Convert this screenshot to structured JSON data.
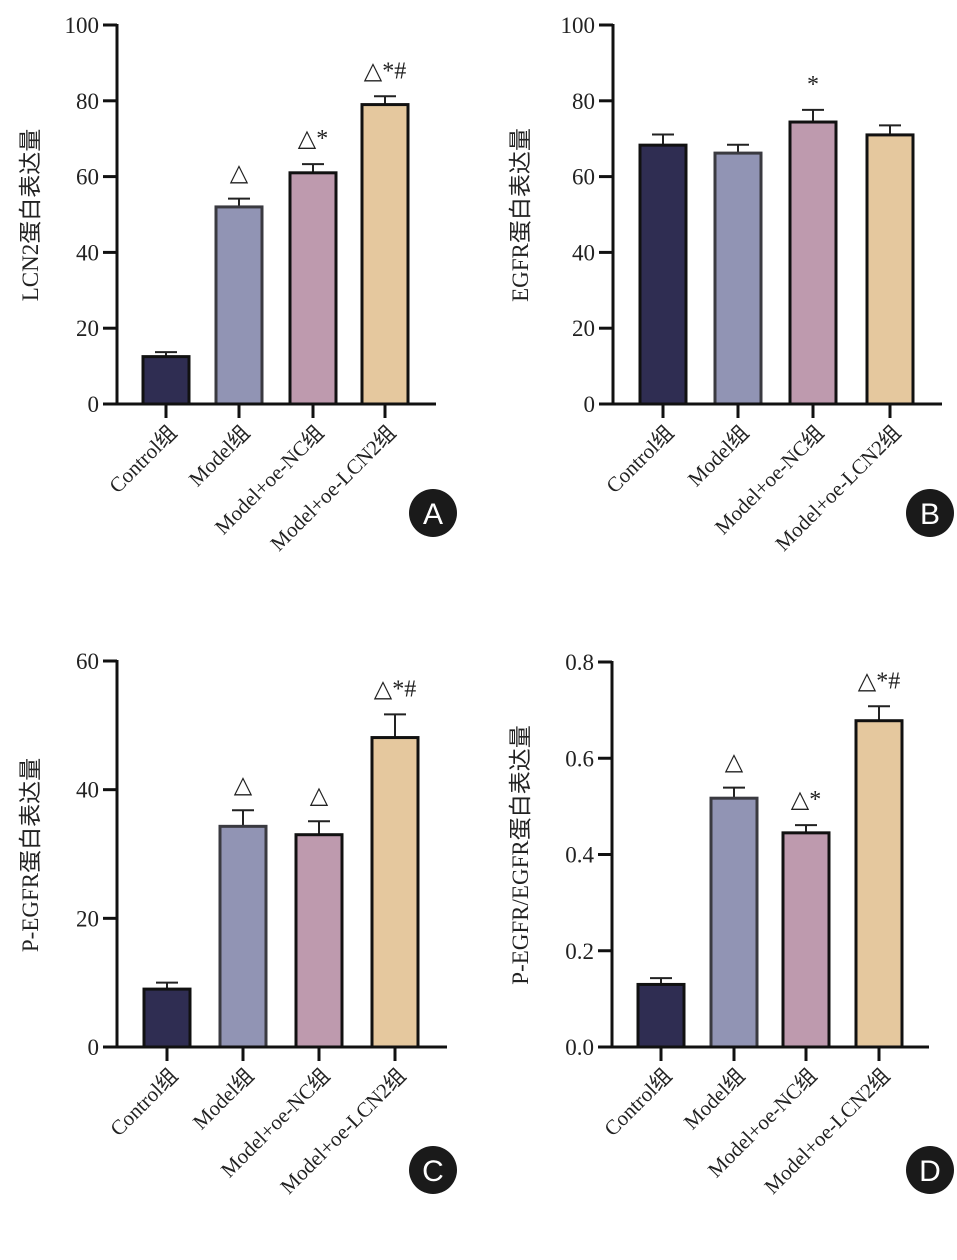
{
  "figure": {
    "categories": [
      "Control组",
      "Model组",
      "Model+oe-NC组",
      "Model+oe-LCN2组"
    ],
    "colors": [
      "#2f2d52",
      "#9194b4",
      "#be9aae",
      "#e5c89e"
    ],
    "edge_colors": [
      "#111111",
      "#3a3a40",
      "#111111",
      "#111111"
    ]
  },
  "chart_data": [
    {
      "panel": "A",
      "type": "bar",
      "title": "",
      "xlabel": "",
      "ylabel": "LCN2蛋白表达量",
      "categories": [
        "Control组",
        "Model组",
        "Model+oe-NC组",
        "Model+oe-LCN2组"
      ],
      "values": [
        12.5,
        52,
        61,
        79
      ],
      "errors": [
        1.2,
        2.2,
        2.3,
        2.2
      ],
      "annotations": [
        "",
        "△",
        "△*",
        "△*#"
      ],
      "ylim": [
        0,
        100
      ],
      "yticks": [
        0,
        20,
        40,
        60,
        80,
        100
      ],
      "ytick_labels": [
        "0",
        "20",
        "40",
        "60",
        "80",
        "100"
      ],
      "grid": false
    },
    {
      "panel": "B",
      "type": "bar",
      "title": "",
      "xlabel": "",
      "ylabel": "EGFR蛋白表达量",
      "categories": [
        "Control组",
        "Model组",
        "Model+oe-NC组",
        "Model+oe-LCN2组"
      ],
      "values": [
        68.3,
        66.2,
        74.4,
        71
      ],
      "errors": [
        2.8,
        2.2,
        3.2,
        2.5
      ],
      "annotations": [
        "",
        "",
        "*",
        ""
      ],
      "ylim": [
        0,
        100
      ],
      "yticks": [
        0,
        20,
        40,
        60,
        80,
        100
      ],
      "ytick_labels": [
        "0",
        "20",
        "40",
        "60",
        "80",
        "100"
      ],
      "grid": false
    },
    {
      "panel": "C",
      "type": "bar",
      "title": "",
      "xlabel": "",
      "ylabel": "P-EGFR蛋白表达量",
      "categories": [
        "Control组",
        "Model组",
        "Model+oe-NC组",
        "Model+oe-LCN2组"
      ],
      "values": [
        9,
        34.3,
        33,
        48.1
      ],
      "errors": [
        1.0,
        2.5,
        2.1,
        3.6
      ],
      "annotations": [
        "",
        "△",
        "△",
        "△*#"
      ],
      "ylim": [
        0,
        60
      ],
      "yticks": [
        0,
        20,
        40,
        60
      ],
      "ytick_labels": [
        "0",
        "20",
        "40",
        "60"
      ],
      "grid": false
    },
    {
      "panel": "D",
      "type": "bar",
      "title": "",
      "xlabel": "",
      "ylabel": "P-EGFR/EGFR蛋白表达量",
      "categories": [
        "Control组",
        "Model组",
        "Model+oe-NC组",
        "Model+oe-LCN2组"
      ],
      "values": [
        0.13,
        0.517,
        0.445,
        0.678
      ],
      "errors": [
        0.013,
        0.022,
        0.016,
        0.03
      ],
      "annotations": [
        "",
        "△",
        "△*",
        "△*#"
      ],
      "ylim": [
        0,
        0.8
      ],
      "yticks": [
        0,
        0.2,
        0.4,
        0.6,
        0.8
      ],
      "ytick_labels": [
        "0.0",
        "0.2",
        "0.4",
        "0.6",
        "0.8"
      ],
      "grid": false
    }
  ]
}
